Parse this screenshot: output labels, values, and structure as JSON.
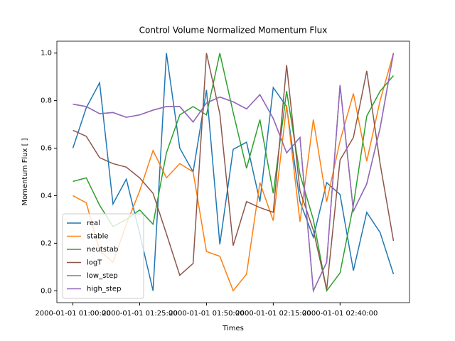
{
  "chart_data": {
    "type": "line",
    "title": "Control Volume Normalized Momentum Flux",
    "xlabel": "Times",
    "ylabel": "Momentum Flux [ ]",
    "x": [
      "2000-01-01 01:00:00",
      "2000-01-01 01:05:00",
      "2000-01-01 01:10:00",
      "2000-01-01 01:15:00",
      "2000-01-01 01:20:00",
      "2000-01-01 01:25:00",
      "2000-01-01 01:30:00",
      "2000-01-01 01:35:00",
      "2000-01-01 01:40:00",
      "2000-01-01 01:45:00",
      "2000-01-01 01:50:00",
      "2000-01-01 01:55:00",
      "2000-01-01 02:00:00",
      "2000-01-01 02:05:00",
      "2000-01-01 02:10:00",
      "2000-01-01 02:15:00",
      "2000-01-01 02:20:00",
      "2000-01-01 02:25:00",
      "2000-01-01 02:30:00",
      "2000-01-01 02:35:00",
      "2000-01-01 02:40:00",
      "2000-01-01 02:45:00",
      "2000-01-01 02:50:00",
      "2000-01-01 02:55:00",
      "2000-01-01 03:00:00"
    ],
    "series": [
      {
        "name": "real",
        "color": "#1f77b4",
        "values": [
          0.6,
          0.77,
          0.875,
          0.365,
          0.47,
          0.24,
          0.0,
          1.0,
          0.6,
          0.5,
          0.845,
          0.195,
          0.595,
          0.625,
          0.375,
          0.855,
          0.775,
          0.375,
          0.225,
          0.455,
          0.405,
          0.085,
          0.33,
          0.245,
          0.07
        ]
      },
      {
        "name": "stable",
        "color": "#ff7f0e",
        "values": [
          0.4,
          0.37,
          0.17,
          0.12,
          0.28,
          0.42,
          0.59,
          0.475,
          0.535,
          0.5,
          0.165,
          0.145,
          0.0,
          0.07,
          0.455,
          0.295,
          0.78,
          0.29,
          0.72,
          0.375,
          0.63,
          0.83,
          0.545,
          0.8,
          1.0
        ]
      },
      {
        "name": "neutstab",
        "color": "#2ca02c",
        "values": [
          0.46,
          0.475,
          0.36,
          0.27,
          0.3,
          0.34,
          0.28,
          0.58,
          0.74,
          0.775,
          0.74,
          1.0,
          0.75,
          0.515,
          0.72,
          0.41,
          0.84,
          0.49,
          0.3,
          0.0,
          0.075,
          0.36,
          0.735,
          0.84,
          0.905
        ]
      },
      {
        "name": "logT",
        "color": "#8c564b",
        "values": [
          0.675,
          0.65,
          0.56,
          0.535,
          0.52,
          0.475,
          0.41,
          0.24,
          0.065,
          0.115,
          1.0,
          0.745,
          0.19,
          0.375,
          0.35,
          0.33,
          0.95,
          0.42,
          0.255,
          0.005,
          0.55,
          0.645,
          0.925,
          0.535,
          0.21
        ]
      },
      {
        "name": "low_step",
        "color": "#7f7f7f",
        "values": [
          0.785,
          0.775,
          0.745,
          0.75,
          0.73,
          0.74,
          0.76,
          0.775,
          0.775,
          0.71,
          0.79,
          0.815,
          0.795,
          0.765,
          0.825,
          0.725,
          0.58,
          0.645,
          0.0,
          0.12,
          0.865,
          0.335,
          0.45,
          0.685,
          1.0
        ]
      },
      {
        "name": "high_step",
        "color": "#9467bd",
        "values": [
          0.785,
          0.775,
          0.745,
          0.75,
          0.73,
          0.74,
          0.76,
          0.775,
          0.775,
          0.71,
          0.79,
          0.815,
          0.795,
          0.765,
          0.825,
          0.725,
          0.58,
          0.645,
          0.0,
          0.12,
          0.865,
          0.335,
          0.45,
          0.685,
          1.0
        ]
      }
    ],
    "xlim": [
      "2000-01-01 00:54:00",
      "2000-01-01 03:06:00"
    ],
    "xticks": [
      "2000-01-01 01:00:00",
      "2000-01-01 01:25:00",
      "2000-01-01 01:50:00",
      "2000-01-01 02:15:00",
      "2000-01-01 02:40:00"
    ],
    "ylim": [
      -0.05,
      1.05
    ],
    "yticks": [
      {
        "value": 0,
        "label": "0.0"
      },
      {
        "value": 0.2,
        "label": "0.2"
      },
      {
        "value": 0.4,
        "label": "0.4"
      },
      {
        "value": 0.6,
        "label": "0.6"
      },
      {
        "value": 0.8,
        "label": "0.8"
      },
      {
        "value": 1,
        "label": "1.0"
      }
    ],
    "legend": "lower left",
    "grid": false
  }
}
